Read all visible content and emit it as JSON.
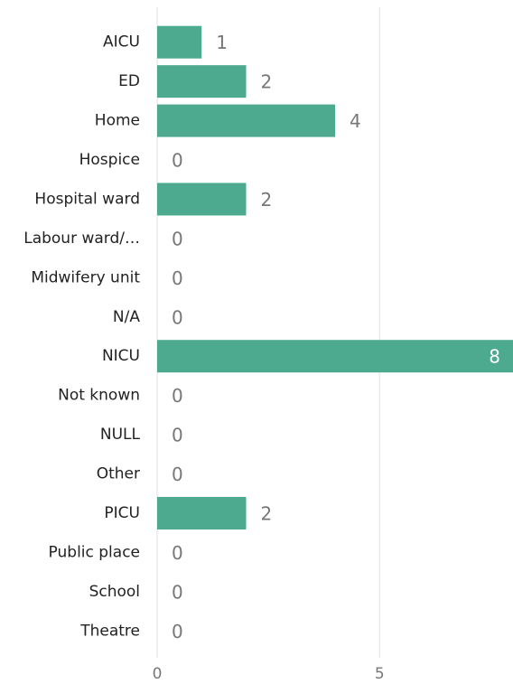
{
  "chart_data": {
    "type": "bar",
    "orientation": "horizontal",
    "categories": [
      "AICU",
      "ED",
      "Home",
      "Hospice",
      "Hospital ward",
      "Labour ward/…",
      "Midwifery unit",
      "N/A",
      "NICU",
      "Not known",
      "NULL",
      "Other",
      "PICU",
      "Public place",
      "School",
      "Theatre"
    ],
    "values": [
      1,
      2,
      4,
      0,
      2,
      0,
      0,
      0,
      8,
      0,
      0,
      0,
      2,
      0,
      0,
      0
    ],
    "color": "#4daa8e",
    "xlim": [
      0,
      8
    ],
    "xticks": [
      0,
      5
    ],
    "grid": true
  }
}
